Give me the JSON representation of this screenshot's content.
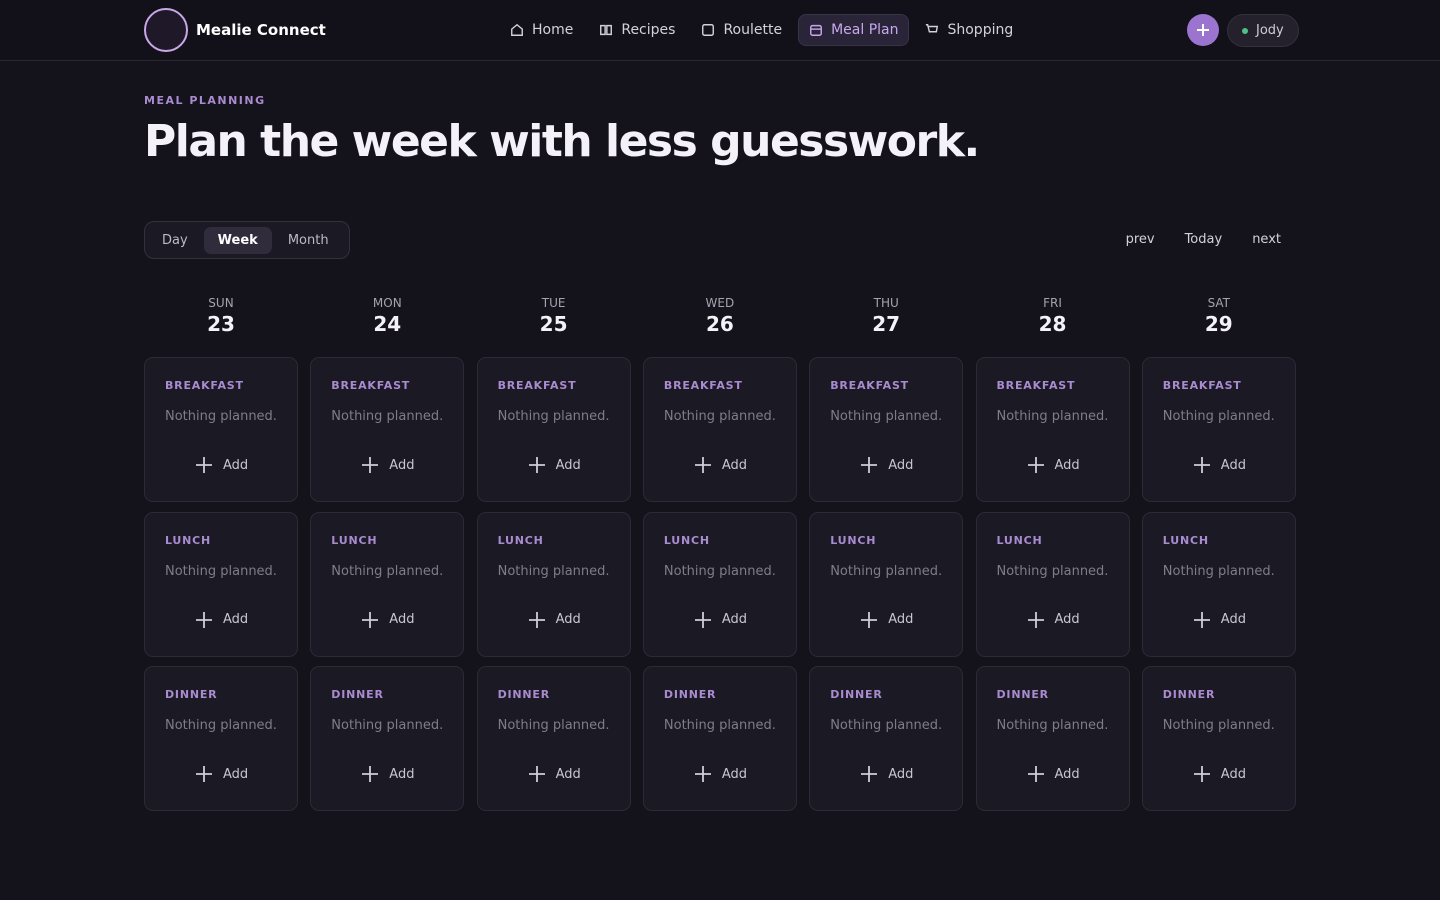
{
  "header": {
    "brand": "Mealie Connect",
    "nav": [
      "Home",
      "Recipes",
      "Roulette",
      "Meal Plan",
      "Shopping"
    ],
    "active_nav": 3,
    "user": "Jody"
  },
  "hero": {
    "eyebrow": "MEAL PLANNING",
    "title": "Plan the week with less guesswork."
  },
  "toolbar": {
    "views": [
      "Day",
      "Week",
      "Month"
    ],
    "active_view": 1,
    "pager": [
      "prev",
      "Today",
      "next"
    ]
  },
  "week": {
    "days": [
      {
        "dow": "SUN",
        "date": 23
      },
      {
        "dow": "MON",
        "date": 24
      },
      {
        "dow": "TUE",
        "date": 25
      },
      {
        "dow": "WED",
        "date": 26
      },
      {
        "dow": "THU",
        "date": 27
      },
      {
        "dow": "FRI",
        "date": 28
      },
      {
        "dow": "SAT",
        "date": 29
      }
    ],
    "meals": [
      "BREAKFAST",
      "LUNCH",
      "DINNER"
    ],
    "empty_text": "Nothing planned.",
    "add_label": "Add"
  }
}
